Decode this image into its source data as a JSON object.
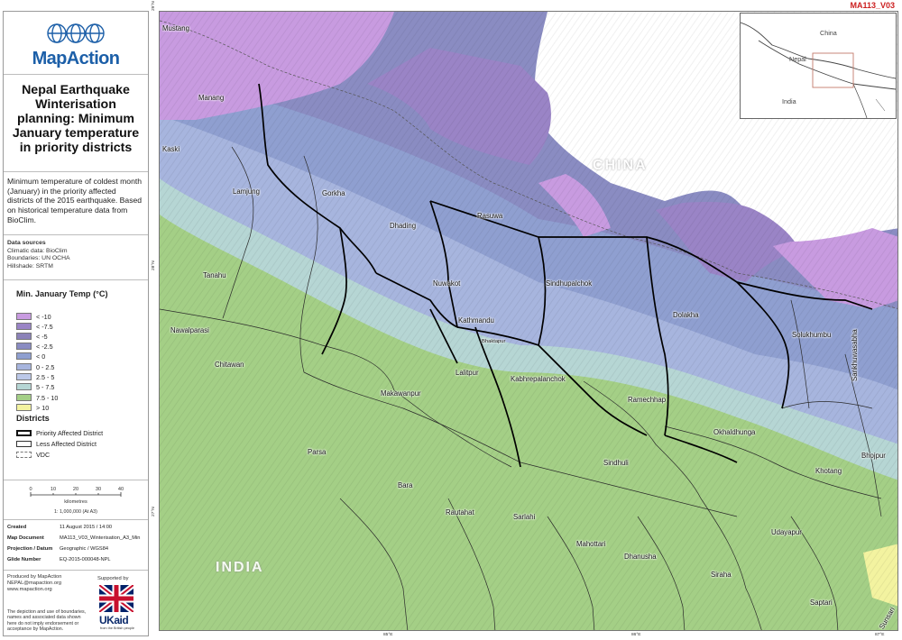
{
  "map_code": "MA113_V03",
  "logo": {
    "name": "MapAction"
  },
  "title": "Nepal Earthquake Winterisation planning: Minimum January temperature in priority districts",
  "description": "Minimum temperature of coldest month (January) in the priority affected districts of the 2015 earthquake. Based on historical temperature data from BioClim.",
  "sources": {
    "heading": "Data sources",
    "lines": [
      "Climatic data: BioClim",
      "Boundaries: UN OCHA",
      "Hillshade: SRTM"
    ]
  },
  "legend": {
    "title": "Min. January Temp (°C)",
    "classes": [
      {
        "label": "< -10",
        "color": "#c89be0"
      },
      {
        "label": "< -7.5",
        "color": "#9a84c6"
      },
      {
        "label": "< -5",
        "color": "#8c82b8"
      },
      {
        "label": "< -2.5",
        "color": "#8a8cc2"
      },
      {
        "label": "< 0",
        "color": "#8f9fd0"
      },
      {
        "label": "0 - 2.5",
        "color": "#a7b5de"
      },
      {
        "label": "2.5 - 5",
        "color": "#bcc8e8"
      },
      {
        "label": "5 - 7.5",
        "color": "#b6d6d4"
      },
      {
        "label": "7.5 - 10",
        "color": "#a4cf86"
      },
      {
        "label": "> 10",
        "color": "#f3f3a0"
      }
    ],
    "districts_title": "Districts",
    "district_items": [
      {
        "label": "Priority Affected District"
      },
      {
        "label": "Less Affected District"
      },
      {
        "label": "VDC"
      }
    ]
  },
  "scale": {
    "ticks": [
      "0",
      "10",
      "20",
      "30",
      "40"
    ],
    "unit": "kilometres",
    "ratio": "1: 1,000,000 (At A3)"
  },
  "meta": [
    {
      "k": "Created",
      "v": "11 August 2015 / 14:00"
    },
    {
      "k": "Map Document",
      "v": "MA113_V03_Winterisation_A3_Min"
    },
    {
      "k": "Projection / Datum",
      "v": "Geographic / WGS84"
    },
    {
      "k": "Glide Number",
      "v": "EQ-2015-000048-NPL"
    }
  ],
  "producer": {
    "lines": [
      "Produced by MapAction",
      "NEPAL@mapaction.org",
      "www.mapaction.org"
    ],
    "disclaimer": "The depiction and use of boundaries, names and associated data shown here do not imply endorsement or acceptance by MapAction.",
    "supported_by": "Supported by",
    "ukaid": "UKaid",
    "ukaid_sub": "from the British people"
  },
  "countries": {
    "china": "CHINA",
    "india": "INDIA"
  },
  "places": [
    "Mustang",
    "Manang",
    "Kaski",
    "Lamjung",
    "Gorkha",
    "Dhading",
    "Rasuwa",
    "Tanahu",
    "Nuwakot",
    "Sindhupalchok",
    "Nawalparasi",
    "Kathmandu",
    "Bhaktapur",
    "Dolakha",
    "Solukhumbu",
    "Chitawan",
    "Lalitpur",
    "Kabhrepalanchok",
    "Makawanpur",
    "Ramechhap",
    "Sankhuwasabha",
    "Okhaldhunga",
    "Parsa",
    "Sindhuli",
    "Bhojpur",
    "Bara",
    "Khotang",
    "Rautahat",
    "Sarlahi",
    "Udayapur",
    "Mahottari",
    "Dhanusha",
    "Siraha",
    "Saptari",
    "Sunsari"
  ],
  "inset": {
    "china": "China",
    "nepal": "Nepal",
    "india": "India"
  },
  "coords": {
    "left": [
      "29°N",
      "28°N",
      "27°N"
    ],
    "bottom": [
      "85°E",
      "86°E",
      "87°E"
    ]
  },
  "colors": {
    "accent": "#cc1f1f",
    "brand": "#1c5fa8"
  }
}
